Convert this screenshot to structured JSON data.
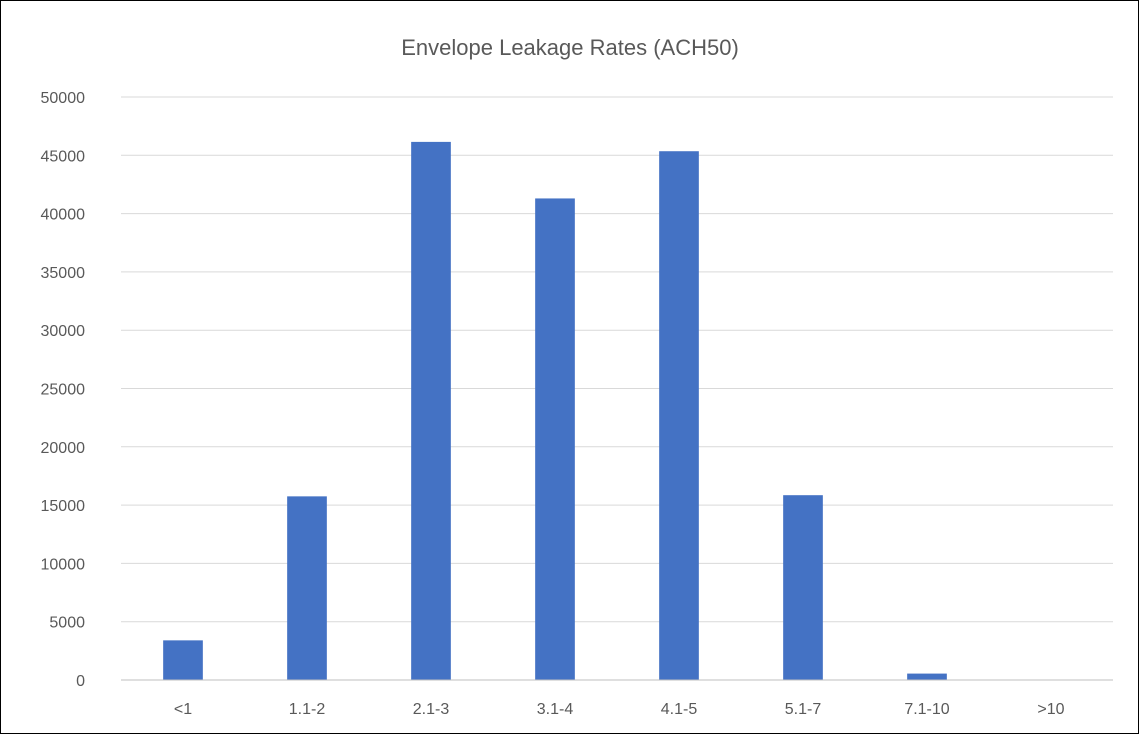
{
  "chart_data": {
    "type": "bar",
    "title": "Envelope Leakage Rates (ACH50)",
    "xlabel": "",
    "ylabel": "",
    "categories": [
      "<1",
      "1.1-2",
      "2.1-3",
      "3.1-4",
      "4.1-5",
      "5.1-7",
      "7.1-10",
      ">10"
    ],
    "series": [
      {
        "values": [
          3400,
          15750,
          46150,
          41300,
          45350,
          15850,
          550,
          40
        ]
      }
    ],
    "ylim": [
      0,
      50000
    ],
    "yticks": [
      0,
      5000,
      10000,
      15000,
      20000,
      25000,
      30000,
      35000,
      40000,
      45000,
      50000
    ],
    "grid": true,
    "legend": "none",
    "colors": {
      "bar": "#4472c4",
      "grid": "#d9d9d9",
      "axis": "#bfbfbf",
      "text": "#595959",
      "border": "#000000"
    }
  }
}
